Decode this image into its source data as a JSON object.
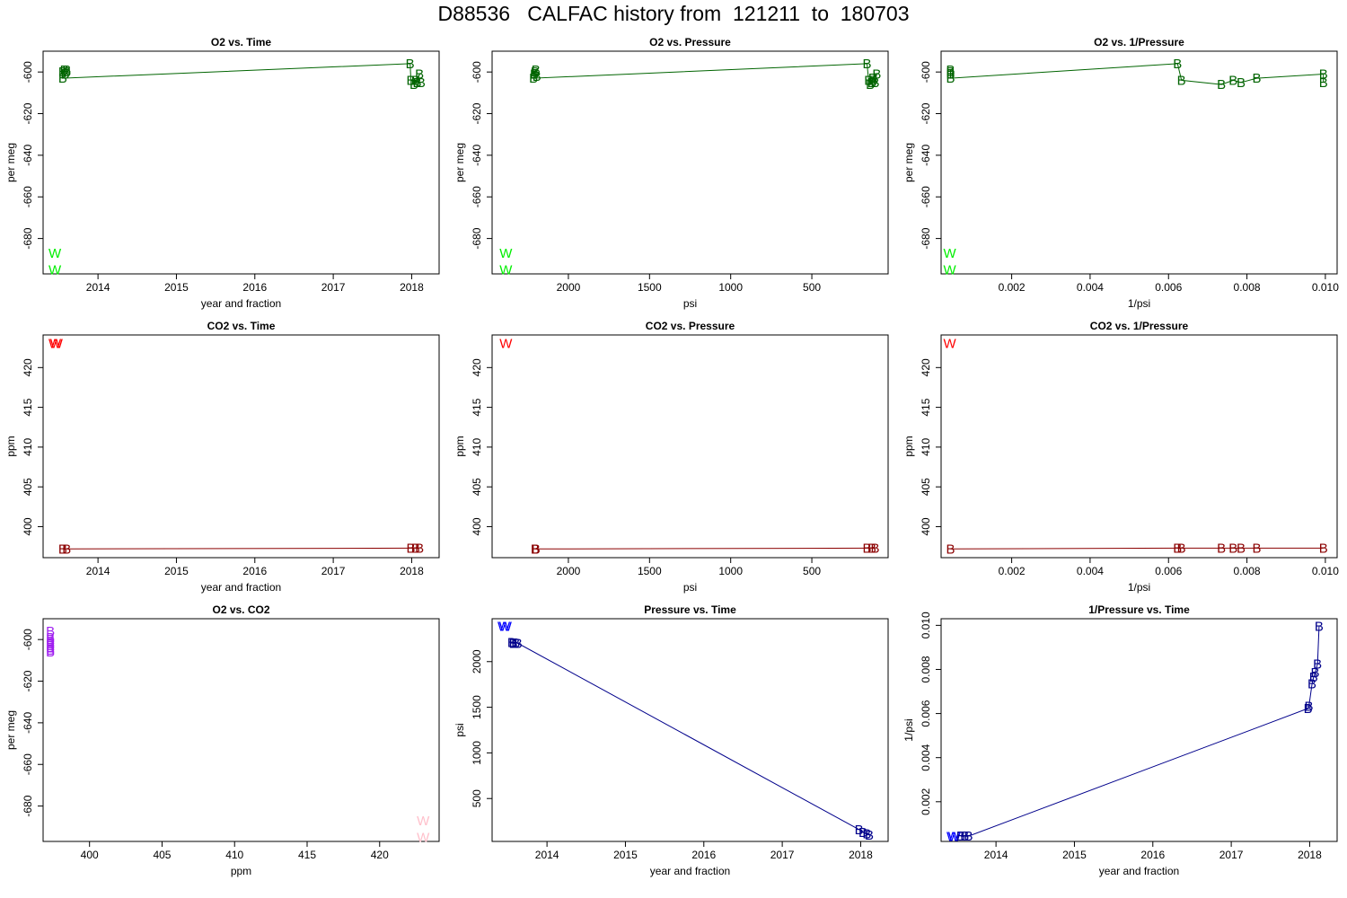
{
  "title": "D88536   CALFAC history from  121211  to  180703",
  "colors": {
    "o2_working": "#00ee00",
    "o2_base": "#006400",
    "co2_working": "#ff0000",
    "co2_base": "#8b0000",
    "o2co2_working": "#ffc0cb",
    "o2co2_base": "#a020f0",
    "p_working": "#0000ff",
    "p_base": "#00008b"
  },
  "chart_data": [
    {
      "type": "scatter",
      "title": "O2 vs. Time",
      "xlabel": "year and fraction",
      "ylabel": "per meg",
      "xlim": [
        2013.3,
        2018.35
      ],
      "ylim": [
        -697,
        -590
      ],
      "xticks": [
        2014,
        2015,
        2016,
        2017,
        2018
      ],
      "yticks": [
        -600,
        -620,
        -640,
        -660,
        -680
      ],
      "series": [
        {
          "marker": "W",
          "color": "#00ee00",
          "line": false,
          "points": [
            [
              2013.45,
              -687
            ],
            [
              2013.45,
              -695
            ]
          ]
        },
        {
          "marker": "B",
          "color": "#006400",
          "line": true,
          "points": [
            [
              2013.6,
              -599
            ],
            [
              2013.57,
              -599
            ],
            [
              2013.55,
              -600
            ],
            [
              2013.58,
              -601
            ],
            [
              2013.6,
              -600
            ],
            [
              2013.55,
              -603
            ],
            [
              2017.98,
              -596
            ],
            [
              2017.99,
              -604
            ],
            [
              2018.05,
              -604
            ],
            [
              2018.03,
              -606
            ],
            [
              2018.1,
              -601
            ],
            [
              2018.07,
              -605
            ],
            [
              2018.12,
              -605
            ]
          ]
        }
      ]
    },
    {
      "type": "scatter",
      "title": "O2 vs. Pressure",
      "xlabel": "psi",
      "ylabel": "per meg",
      "xlim": [
        2470,
        30
      ],
      "ylim": [
        -697,
        -590
      ],
      "xticks": [
        2000,
        1500,
        1000,
        500
      ],
      "yticks": [
        -600,
        -620,
        -640,
        -660,
        -680
      ],
      "series": [
        {
          "marker": "W",
          "color": "#00ee00",
          "line": false,
          "points": [
            [
              2385,
              -687
            ],
            [
              2385,
              -695
            ]
          ]
        },
        {
          "marker": "B",
          "color": "#006400",
          "line": true,
          "points": [
            [
              2200,
              -599
            ],
            [
              2205,
              -600
            ],
            [
              2210,
              -601
            ],
            [
              2195,
              -602
            ],
            [
              2215,
              -603
            ],
            [
              160,
              -596
            ],
            [
              150,
              -604
            ],
            [
              140,
              -606
            ],
            [
              130,
              -605
            ],
            [
              125,
              -603
            ],
            [
              100,
              -601
            ],
            [
              110,
              -605
            ],
            [
              120,
              -604
            ]
          ]
        }
      ]
    },
    {
      "type": "scatter",
      "title": "O2 vs. 1/Pressure",
      "xlabel": "1/psi",
      "ylabel": "per meg",
      "xlim": [
        0.0002,
        0.0103
      ],
      "ylim": [
        -697,
        -590
      ],
      "xticks": [
        0.002,
        0.004,
        0.006,
        0.008,
        0.01
      ],
      "xticklabels": [
        "0.002",
        "0.004",
        "0.006",
        "0.008",
        "0.010"
      ],
      "yticks": [
        -600,
        -620,
        -640,
        -660,
        -680
      ],
      "series": [
        {
          "marker": "W",
          "color": "#00ee00",
          "line": false,
          "points": [
            [
              0.00042,
              -687
            ],
            [
              0.00042,
              -695
            ]
          ]
        },
        {
          "marker": "B",
          "color": "#006400",
          "line": true,
          "points": [
            [
              0.00044,
              -599
            ],
            [
              0.00044,
              -600
            ],
            [
              0.00044,
              -601
            ],
            [
              0.00044,
              -603
            ],
            [
              0.00623,
              -596
            ],
            [
              0.00633,
              -604
            ],
            [
              0.00735,
              -606
            ],
            [
              0.00765,
              -604
            ],
            [
              0.00785,
              -605
            ],
            [
              0.00825,
              -603
            ],
            [
              0.00995,
              -601
            ],
            [
              0.00995,
              -605
            ]
          ]
        }
      ]
    },
    {
      "type": "scatter",
      "title": "CO2 vs. Time",
      "xlabel": "year and fraction",
      "ylabel": "ppm",
      "xlim": [
        2013.3,
        2018.35
      ],
      "ylim": [
        396.1,
        424.1
      ],
      "xticks": [
        2014,
        2015,
        2016,
        2017,
        2018
      ],
      "yticks": [
        400,
        405,
        410,
        415,
        420
      ],
      "series": [
        {
          "marker": "W",
          "color": "#ff0000",
          "line": false,
          "points": [
            [
              2013.45,
              423.0
            ],
            [
              2013.47,
              423.0
            ]
          ]
        },
        {
          "marker": "B",
          "color": "#8b0000",
          "line": true,
          "points": [
            [
              2013.55,
              397.2
            ],
            [
              2013.6,
              397.2
            ],
            [
              2017.99,
              397.3
            ],
            [
              2018.05,
              397.3
            ],
            [
              2018.1,
              397.3
            ]
          ]
        }
      ]
    },
    {
      "type": "scatter",
      "title": "CO2 vs. Pressure",
      "xlabel": "psi",
      "ylabel": "ppm",
      "xlim": [
        2470,
        30
      ],
      "ylim": [
        396.1,
        424.1
      ],
      "xticks": [
        2000,
        1500,
        1000,
        500
      ],
      "yticks": [
        400,
        405,
        410,
        415,
        420
      ],
      "series": [
        {
          "marker": "W",
          "color": "#ff0000",
          "line": false,
          "points": [
            [
              2385,
              423.0
            ]
          ]
        },
        {
          "marker": "B",
          "color": "#8b0000",
          "line": true,
          "points": [
            [
              2200,
              397.2
            ],
            [
              2205,
              397.2
            ],
            [
              160,
              397.3
            ],
            [
              130,
              397.3
            ],
            [
              110,
              397.3
            ]
          ]
        }
      ]
    },
    {
      "type": "scatter",
      "title": "CO2 vs. 1/Pressure",
      "xlabel": "1/psi",
      "ylabel": "ppm",
      "xlim": [
        0.0002,
        0.0103
      ],
      "ylim": [
        396.1,
        424.1
      ],
      "xticks": [
        0.002,
        0.004,
        0.006,
        0.008,
        0.01
      ],
      "xticklabels": [
        "0.002",
        "0.004",
        "0.006",
        "0.008",
        "0.010"
      ],
      "yticks": [
        400,
        405,
        410,
        415,
        420
      ],
      "series": [
        {
          "marker": "W",
          "color": "#ff0000",
          "line": false,
          "points": [
            [
              0.00042,
              423.0
            ]
          ]
        },
        {
          "marker": "B",
          "color": "#8b0000",
          "line": true,
          "points": [
            [
              0.00044,
              397.2
            ],
            [
              0.00623,
              397.3
            ],
            [
              0.00633,
              397.3
            ],
            [
              0.00735,
              397.3
            ],
            [
              0.00765,
              397.3
            ],
            [
              0.00785,
              397.3
            ],
            [
              0.00825,
              397.3
            ],
            [
              0.00995,
              397.3
            ]
          ]
        }
      ]
    },
    {
      "type": "scatter",
      "title": "O2 vs. CO2",
      "xlabel": "ppm",
      "ylabel": "per meg",
      "xlim": [
        396.8,
        424.1
      ],
      "ylim": [
        -697,
        -590
      ],
      "xticks": [
        400,
        405,
        410,
        415,
        420
      ],
      "yticks": [
        -600,
        -620,
        -640,
        -660,
        -680
      ],
      "series": [
        {
          "marker": "W",
          "color": "#ffc0cb",
          "line": false,
          "points": [
            [
              423.0,
              -687
            ],
            [
              423.0,
              -695
            ]
          ]
        },
        {
          "marker": "B",
          "color": "#a020f0",
          "line": false,
          "points": [
            [
              397.3,
              -596
            ],
            [
              397.3,
              -599
            ],
            [
              397.3,
              -600
            ],
            [
              397.3,
              -601
            ],
            [
              397.3,
              -602
            ],
            [
              397.3,
              -603
            ],
            [
              397.3,
              -604
            ],
            [
              397.3,
              -605
            ],
            [
              397.3,
              -606
            ]
          ]
        }
      ]
    },
    {
      "type": "scatter",
      "title": "Pressure vs. Time",
      "xlabel": "year and fraction",
      "ylabel": "psi",
      "xlim": [
        2013.3,
        2018.35
      ],
      "ylim": [
        30,
        2470
      ],
      "xticks": [
        2014,
        2015,
        2016,
        2017,
        2018
      ],
      "yticks": [
        500,
        1000,
        1500,
        2000
      ],
      "series": [
        {
          "marker": "W",
          "color": "#0000ff",
          "line": false,
          "points": [
            [
              2013.45,
              2385
            ],
            [
              2013.47,
              2385
            ]
          ]
        },
        {
          "marker": "B",
          "color": "#00008b",
          "line": true,
          "points": [
            [
              2013.55,
              2210
            ],
            [
              2013.57,
              2200
            ],
            [
              2013.6,
              2205
            ],
            [
              2013.63,
              2200
            ],
            [
              2017.98,
              160
            ],
            [
              2018.03,
              130
            ],
            [
              2018.08,
              115
            ],
            [
              2018.11,
              100
            ]
          ]
        }
      ]
    },
    {
      "type": "scatter",
      "title": "1/Pressure vs. Time",
      "xlabel": "year and fraction",
      "ylabel": "1/psi",
      "xlim": [
        2013.3,
        2018.35
      ],
      "ylim": [
        0.0002,
        0.0103
      ],
      "xticks": [
        2014,
        2015,
        2016,
        2017,
        2018
      ],
      "yticks": [
        0.002,
        0.004,
        0.006,
        0.008,
        0.01
      ],
      "yticklabels": [
        "0.002",
        "0.004",
        "0.006",
        "0.008",
        "0.010"
      ],
      "series": [
        {
          "marker": "W",
          "color": "#0000ff",
          "line": false,
          "points": [
            [
              2013.45,
              0.00042
            ],
            [
              2013.47,
              0.00042
            ]
          ]
        },
        {
          "marker": "B",
          "color": "#00008b",
          "line": true,
          "points": [
            [
              2013.55,
              0.00044
            ],
            [
              2013.6,
              0.00044
            ],
            [
              2013.65,
              0.00044
            ],
            [
              2017.98,
              0.00623
            ],
            [
              2017.99,
              0.00633
            ],
            [
              2018.03,
              0.00735
            ],
            [
              2018.05,
              0.00765
            ],
            [
              2018.07,
              0.00785
            ],
            [
              2018.1,
              0.00825
            ],
            [
              2018.12,
              0.00995
            ]
          ]
        }
      ]
    }
  ]
}
